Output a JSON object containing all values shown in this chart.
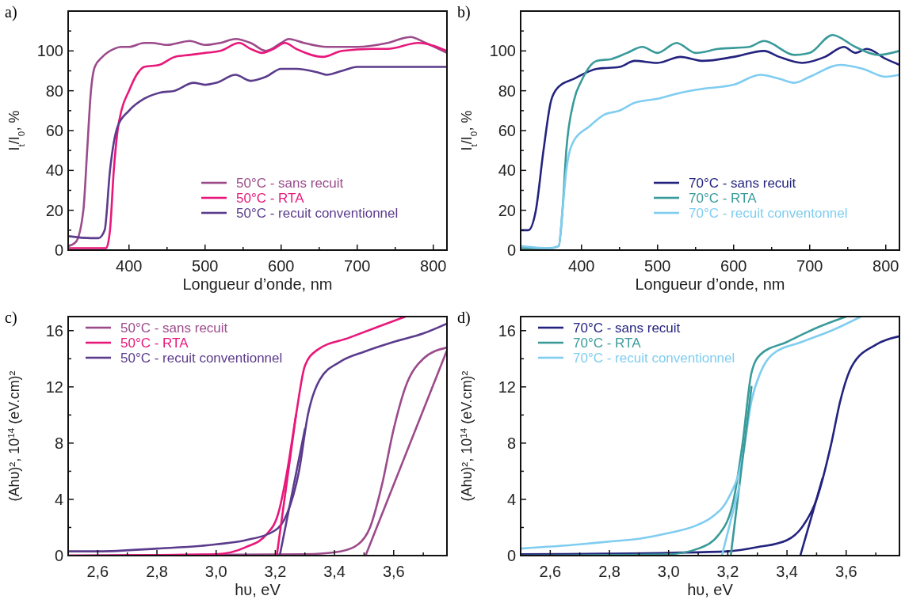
{
  "chart_data": [
    {
      "type": "line",
      "title": "a)",
      "xlabel": "Longueur d’onde, nm",
      "ylabel": "I$_{t}$/I$_{0}$, %",
      "xlim": [
        320,
        818
      ],
      "ylim": [
        0,
        120
      ],
      "xticks": [
        400,
        {
          "value": 450,
          "label": null
        },
        500,
        {
          "value": 550,
          "label": null
        },
        600,
        {
          "value": 650,
          "label": null
        },
        700,
        {
          "value": 750,
          "label": null
        },
        800
      ],
      "yticks": [
        0,
        {
          "value": 10,
          "label": null
        },
        20,
        {
          "value": 30,
          "label": null
        },
        40,
        {
          "value": 50,
          "label": null
        },
        60,
        {
          "value": 70,
          "label": null
        },
        80,
        {
          "value": 90,
          "label": null
        },
        100,
        {
          "value": 110,
          "label": null
        }
      ],
      "legend": "bottom right",
      "series": [
        {
          "name": "50°C - sans recuit",
          "color": "#9b4a8a",
          "x": [
            320,
            330,
            340,
            345,
            350,
            355,
            365,
            380,
            390,
            400,
            420,
            430,
            450,
            480,
            500,
            520,
            540,
            560,
            580,
            600,
            610,
            630,
            660,
            700,
            740,
            770,
            790,
            818
          ],
          "values": [
            2,
            4,
            20,
            50,
            80,
            92,
            97,
            101,
            102,
            102,
            104,
            104,
            103,
            105,
            103,
            104,
            106,
            104,
            100,
            104,
            106,
            104,
            102,
            102,
            104,
            107,
            104,
            99
          ]
        },
        {
          "name": "50°C -  RTA",
          "color": "#e8177a",
          "x": [
            320,
            360,
            370,
            375,
            380,
            385,
            390,
            400,
            410,
            420,
            440,
            460,
            480,
            500,
            520,
            545,
            560,
            575,
            590,
            605,
            620,
            655,
            680,
            720,
            740,
            780,
            818
          ],
          "values": [
            1,
            1,
            1,
            10,
            40,
            60,
            70,
            80,
            88,
            92,
            93,
            97,
            98,
            99,
            100,
            104,
            101,
            99,
            101,
            104,
            101,
            97,
            100,
            101,
            101,
            104,
            100
          ]
        },
        {
          "name": "50°C - recuit conventionnel",
          "color": "#5b3b8c",
          "x": [
            320,
            350,
            360,
            368,
            375,
            385,
            400,
            420,
            440,
            460,
            485,
            500,
            515,
            540,
            560,
            580,
            600,
            620,
            650,
            660,
            680,
            700,
            750,
            818
          ],
          "values": [
            7,
            6,
            6,
            10,
            40,
            62,
            70,
            76,
            79,
            80,
            84,
            83,
            84,
            88,
            85,
            87,
            91,
            91,
            89,
            88,
            90,
            92,
            92,
            92
          ]
        }
      ]
    },
    {
      "type": "line",
      "title": "b)",
      "xlabel": "Longueur d’onde, nm",
      "ylabel": "I$_{t}$/I$_{0}$, %",
      "xlim": [
        320,
        818
      ],
      "ylim": [
        0,
        120
      ],
      "xticks": [
        400,
        {
          "value": 450,
          "label": null
        },
        500,
        {
          "value": 550,
          "label": null
        },
        600,
        {
          "value": 650,
          "label": null
        },
        700,
        {
          "value": 750,
          "label": null
        },
        800
      ],
      "yticks": [
        0,
        {
          "value": 10,
          "label": null
        },
        20,
        {
          "value": 30,
          "label": null
        },
        40,
        {
          "value": 50,
          "label": null
        },
        60,
        {
          "value": 70,
          "label": null
        },
        80,
        {
          "value": 90,
          "label": null
        },
        100,
        {
          "value": 110,
          "label": null
        }
      ],
      "legend": "bottom right",
      "series": [
        {
          "name": "70°C - sans recuit",
          "color": "#23237f",
          "x": [
            320,
            330,
            340,
            350,
            360,
            370,
            390,
            420,
            450,
            470,
            500,
            530,
            560,
            600,
            640,
            660,
            690,
            720,
            745,
            760,
            775,
            800,
            818
          ],
          "values": [
            10,
            10,
            20,
            50,
            75,
            82,
            86,
            91,
            92,
            95,
            94,
            97,
            95,
            97,
            100,
            97,
            94,
            97,
            102,
            99,
            101,
            96,
            93
          ]
        },
        {
          "name": "70°C - RTA",
          "color": "#3a9a9a",
          "x": [
            320,
            360,
            370,
            375,
            380,
            390,
            400,
            420,
            440,
            460,
            480,
            500,
            525,
            550,
            580,
            620,
            640,
            680,
            700,
            730,
            760,
            790,
            818
          ],
          "values": [
            1,
            1,
            2,
            20,
            50,
            75,
            85,
            95,
            96,
            99,
            102,
            99,
            104,
            99,
            101,
            102,
            105,
            98,
            99,
            108,
            102,
            98,
            100
          ]
        },
        {
          "name": "70°C -  recuit conventonnel",
          "color": "#7fcdf0",
          "x": [
            320,
            360,
            370,
            375,
            380,
            390,
            410,
            430,
            450,
            470,
            500,
            530,
            560,
            600,
            635,
            660,
            680,
            700,
            740,
            770,
            800,
            818
          ],
          "values": [
            2,
            1,
            2,
            20,
            40,
            55,
            62,
            68,
            70,
            74,
            76,
            79,
            81,
            83,
            88,
            86,
            84,
            87,
            93,
            91,
            87,
            88
          ]
        }
      ]
    },
    {
      "type": "line",
      "title": "c)",
      "xlabel": "hυ, eV",
      "ylabel": "(Ahυ)², 10$^{14}$ (eV.cm)²",
      "xlim": [
        2.5,
        3.78
      ],
      "ylim": [
        0,
        17
      ],
      "xticks": [
        {
          "value": 2.6,
          "label": "2,6"
        },
        {
          "value": 2.7,
          "label": null
        },
        {
          "value": 2.8,
          "label": "2,8"
        },
        {
          "value": 2.9,
          "label": null
        },
        {
          "value": 3.0,
          "label": "3,0"
        },
        {
          "value": 3.1,
          "label": null
        },
        {
          "value": 3.2,
          "label": "3,2"
        },
        {
          "value": 3.3,
          "label": null
        },
        {
          "value": 3.4,
          "label": "3,4"
        },
        {
          "value": 3.5,
          "label": null
        },
        {
          "value": 3.6,
          "label": "3,6"
        },
        {
          "value": 3.7,
          "label": null
        }
      ],
      "yticks": [
        0,
        {
          "value": 2,
          "label": null
        },
        4,
        {
          "value": 6,
          "label": null
        },
        8,
        {
          "value": 10,
          "label": null
        },
        12,
        {
          "value": 14,
          "label": null
        },
        16
      ],
      "legend": "top left",
      "series": [
        {
          "name": "50°C - sans recuit",
          "color": "#9b4a8a",
          "x": [
            2.5,
            3.3,
            3.42,
            3.48,
            3.52,
            3.56,
            3.6,
            3.64,
            3.7,
            3.78
          ],
          "values": [
            0,
            0.1,
            0.3,
            0.8,
            2,
            5,
            9,
            12,
            14,
            14.8
          ]
        },
        {
          "name": "50°C - RTA",
          "color": "#e8177a",
          "x": [
            2.5,
            3.0,
            3.1,
            3.17,
            3.21,
            3.24,
            3.27,
            3.3,
            3.34,
            3.45,
            3.55,
            3.64
          ],
          "values": [
            0,
            0.1,
            0.6,
            1.5,
            3,
            6,
            10,
            13.5,
            14.6,
            15.5,
            16.3,
            17
          ]
        },
        {
          "name": "50°C - recuit conventionnel",
          "color": "#5b3b8c",
          "x": [
            2.5,
            2.6,
            2.8,
            3.0,
            3.1,
            3.2,
            3.24,
            3.28,
            3.31,
            3.35,
            3.42,
            3.5,
            3.6,
            3.7,
            3.78
          ],
          "values": [
            0.3,
            0.3,
            0.5,
            0.8,
            1.1,
            1.8,
            3,
            6,
            10,
            12.5,
            13.8,
            14.5,
            15.2,
            15.8,
            16.5
          ]
        },
        {
          "type": "line",
          "color": "#9b4a8a",
          "x": [
            3.505,
            3.78
          ],
          "values": [
            0,
            14.6
          ]
        },
        {
          "type": "line",
          "color": "#e8177a",
          "x": [
            3.205,
            3.27
          ],
          "values": [
            0,
            10
          ]
        },
        {
          "type": "line",
          "color": "#5b3b8c",
          "x": [
            3.215,
            3.3
          ],
          "values": [
            0,
            9
          ]
        }
      ]
    },
    {
      "type": "line",
      "title": "d)",
      "xlabel": "hυ, eV",
      "ylabel": "(Ahυ)², 10$^{14}$ (eV.cm)²",
      "xlim": [
        2.5,
        3.78
      ],
      "ylim": [
        0,
        17
      ],
      "xticks": [
        {
          "value": 2.6,
          "label": "2,6"
        },
        {
          "value": 2.7,
          "label": null
        },
        {
          "value": 2.8,
          "label": "2,8"
        },
        {
          "value": 2.9,
          "label": null
        },
        {
          "value": 3.0,
          "label": "3,0"
        },
        {
          "value": 3.1,
          "label": null
        },
        {
          "value": 3.2,
          "label": "3,2"
        },
        {
          "value": 3.3,
          "label": null
        },
        {
          "value": 3.4,
          "label": "3,4"
        },
        {
          "value": 3.5,
          "label": null
        },
        {
          "value": 3.6,
          "label": "3,6"
        },
        {
          "value": 3.7,
          "label": null
        }
      ],
      "yticks": [
        0,
        {
          "value": 2,
          "label": null
        },
        4,
        {
          "value": 6,
          "label": null
        },
        8,
        {
          "value": 10,
          "label": null
        },
        12,
        {
          "value": 14,
          "label": null
        },
        16
      ],
      "legend": "top left",
      "series": [
        {
          "name": "70°C - sans recuit",
          "color": "#23237f",
          "x": [
            2.5,
            3.0,
            3.2,
            3.3,
            3.4,
            3.45,
            3.5,
            3.55,
            3.58,
            3.62,
            3.7,
            3.78
          ],
          "values": [
            0.1,
            0.2,
            0.3,
            0.6,
            1.1,
            2,
            4,
            8,
            11,
            13.5,
            15,
            15.6
          ]
        },
        {
          "name": "70°C - RTA",
          "color": "#3a9a9a",
          "x": [
            2.5,
            3.0,
            3.1,
            3.17,
            3.22,
            3.25,
            3.28,
            3.31,
            3.4,
            3.5,
            3.6
          ],
          "values": [
            0,
            0.1,
            0.5,
            1.5,
            4,
            8,
            13,
            14.3,
            15.2,
            16.2,
            17
          ]
        },
        {
          "name": "70°C - recuit conventionnel",
          "color": "#7fcdf0",
          "x": [
            2.5,
            2.7,
            2.8,
            2.9,
            3.0,
            3.1,
            3.15,
            3.2,
            3.25,
            3.28,
            3.31,
            3.35,
            3.45,
            3.55,
            3.65
          ],
          "values": [
            0.5,
            0.8,
            1,
            1.2,
            1.6,
            2.2,
            2.8,
            4,
            7,
            11,
            13,
            14.3,
            15.2,
            16,
            17
          ]
        },
        {
          "type": "line",
          "color": "#23237f",
          "x": [
            3.445,
            3.52
          ],
          "values": [
            0,
            5.5
          ]
        },
        {
          "type": "line",
          "color": "#3a9a9a",
          "x": [
            3.21,
            3.28
          ],
          "values": [
            0,
            12
          ]
        },
        {
          "type": "line",
          "color": "#7fcdf0",
          "x": [
            3.18,
            3.24
          ],
          "values": [
            0,
            5
          ]
        }
      ]
    }
  ]
}
